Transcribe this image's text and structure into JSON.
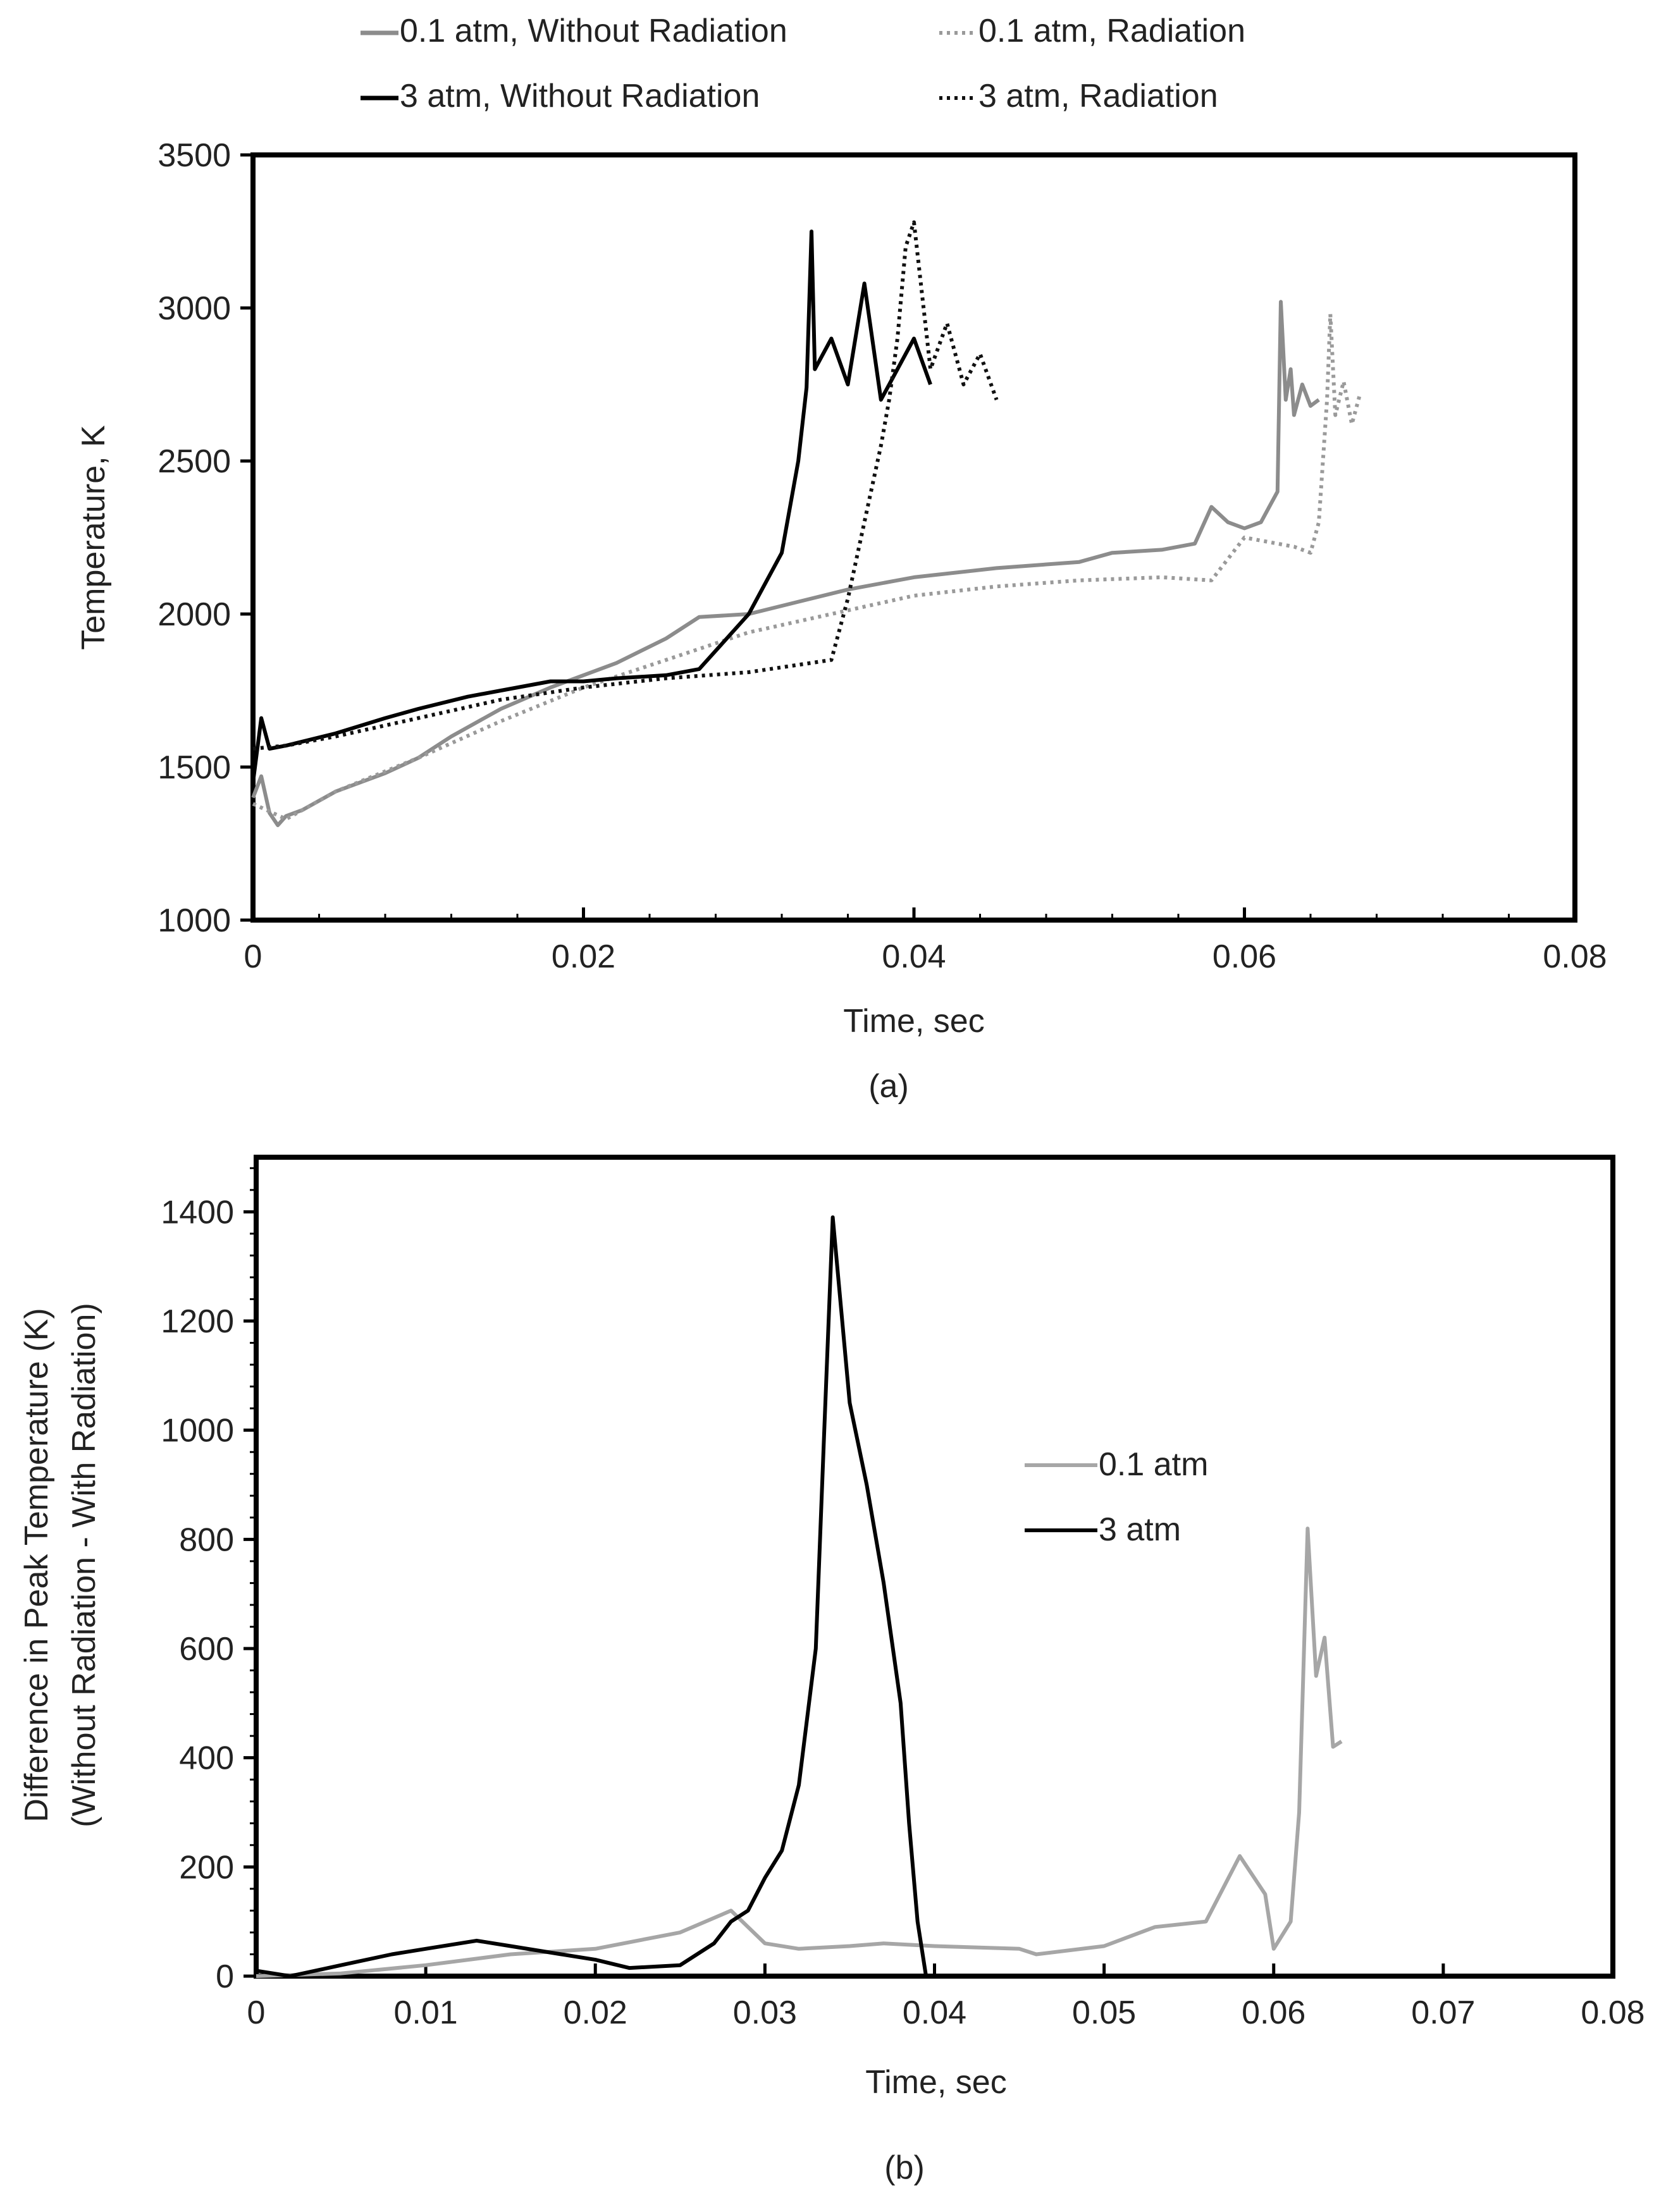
{
  "chart_data": [
    {
      "id": "a",
      "type": "line",
      "caption": "(a)",
      "xlabel": "Time, sec",
      "ylabel": "Temperature, K",
      "xlim": [
        0,
        0.08
      ],
      "ylim": [
        1000,
        3500
      ],
      "xticks": [
        "0",
        "0.02",
        "0.04",
        "0.06",
        "0.08"
      ],
      "yticks": [
        "1000",
        "1500",
        "2000",
        "2500",
        "3000",
        "3500"
      ],
      "legend_position": "top",
      "series": [
        {
          "name": "0.1 atm, Without Radiation",
          "color": "#8c8c8c",
          "dash": "solid",
          "x": [
            0,
            0.0005,
            0.001,
            0.0015,
            0.002,
            0.003,
            0.005,
            0.008,
            0.01,
            0.012,
            0.015,
            0.018,
            0.02,
            0.022,
            0.025,
            0.027,
            0.03,
            0.033,
            0.036,
            0.04,
            0.045,
            0.05,
            0.052,
            0.055,
            0.057,
            0.058,
            0.059,
            0.06,
            0.061,
            0.0615,
            0.062,
            0.0622,
            0.0625,
            0.0628,
            0.063,
            0.0635,
            0.064,
            0.0645
          ],
          "y": [
            1400,
            1470,
            1350,
            1310,
            1340,
            1360,
            1420,
            1480,
            1530,
            1600,
            1690,
            1760,
            1800,
            1840,
            1920,
            1990,
            2000,
            2040,
            2080,
            2120,
            2150,
            2170,
            2200,
            2210,
            2230,
            2350,
            2300,
            2280,
            2300,
            2350,
            2400,
            3020,
            2700,
            2800,
            2650,
            2750,
            2680,
            2700
          ]
        },
        {
          "name": "0.1 atm, Radiation",
          "color": "#9a9a9a",
          "dash": "dotted",
          "x": [
            0,
            0.002,
            0.005,
            0.01,
            0.015,
            0.02,
            0.025,
            0.03,
            0.035,
            0.04,
            0.045,
            0.05,
            0.055,
            0.058,
            0.06,
            0.062,
            0.063,
            0.064,
            0.0645,
            0.065,
            0.0652,
            0.0655,
            0.066,
            0.0665,
            0.067
          ],
          "y": [
            1380,
            1330,
            1420,
            1530,
            1650,
            1760,
            1850,
            1940,
            2000,
            2060,
            2090,
            2110,
            2120,
            2110,
            2250,
            2230,
            2220,
            2200,
            2300,
            2700,
            2980,
            2650,
            2760,
            2620,
            2720
          ]
        },
        {
          "name": "3 atm, Without Radiation",
          "color": "#000000",
          "dash": "solid",
          "x": [
            0,
            0.0005,
            0.001,
            0.002,
            0.005,
            0.008,
            0.01,
            0.013,
            0.015,
            0.018,
            0.02,
            0.022,
            0.025,
            0.027,
            0.028,
            0.03,
            0.031,
            0.032,
            0.033,
            0.0335,
            0.0338,
            0.034,
            0.035,
            0.036,
            0.037,
            0.038,
            0.039,
            0.04,
            0.041
          ],
          "y": [
            1450,
            1660,
            1560,
            1570,
            1610,
            1660,
            1690,
            1730,
            1750,
            1780,
            1780,
            1790,
            1800,
            1820,
            1880,
            2000,
            2100,
            2200,
            2500,
            2740,
            3250,
            2800,
            2900,
            2750,
            3080,
            2700,
            2800,
            2900,
            2750
          ]
        },
        {
          "name": "3 atm, Radiation",
          "color": "#111111",
          "dash": "dotted",
          "x": [
            0,
            0.002,
            0.005,
            0.01,
            0.015,
            0.02,
            0.025,
            0.03,
            0.035,
            0.036,
            0.037,
            0.038,
            0.0385,
            0.039,
            0.0395,
            0.04,
            0.041,
            0.042,
            0.043,
            0.044,
            0.045
          ],
          "y": [
            1560,
            1570,
            1600,
            1660,
            1720,
            1760,
            1790,
            1810,
            1850,
            2050,
            2300,
            2550,
            2700,
            2900,
            3200,
            3280,
            2800,
            2950,
            2750,
            2850,
            2700
          ]
        }
      ]
    },
    {
      "id": "b",
      "type": "line",
      "caption": "(b)",
      "xlabel": "Time, sec",
      "ylabel": "Difference in Peak Temperature (K)",
      "ylabel2": "(Without Radiation - With Radiation)",
      "xlim": [
        0,
        0.08
      ],
      "ylim": [
        0,
        1500
      ],
      "xticks": [
        "0",
        "0.01",
        "0.02",
        "0.03",
        "0.04",
        "0.05",
        "0.06",
        "0.07",
        "0.08"
      ],
      "yticks": [
        "0",
        "200",
        "400",
        "600",
        "800",
        "1000",
        "1200",
        "1400"
      ],
      "legend_position": "right",
      "series": [
        {
          "name": "0.1 atm",
          "color": "#a6a6a6",
          "dash": "solid",
          "x": [
            0,
            0.005,
            0.01,
            0.015,
            0.02,
            0.025,
            0.028,
            0.03,
            0.032,
            0.035,
            0.037,
            0.04,
            0.045,
            0.046,
            0.05,
            0.053,
            0.056,
            0.058,
            0.0595,
            0.06,
            0.061,
            0.0615,
            0.062,
            0.0625,
            0.063,
            0.0635,
            0.064
          ],
          "y": [
            0,
            5,
            20,
            40,
            50,
            80,
            120,
            60,
            50,
            55,
            60,
            55,
            50,
            40,
            55,
            90,
            100,
            220,
            150,
            50,
            100,
            300,
            820,
            550,
            620,
            420,
            430
          ]
        },
        {
          "name": "3 atm",
          "color": "#000000",
          "dash": "solid",
          "x": [
            0,
            0.002,
            0.005,
            0.008,
            0.01,
            0.013,
            0.015,
            0.018,
            0.02,
            0.022,
            0.025,
            0.027,
            0.028,
            0.029,
            0.03,
            0.031,
            0.032,
            0.033,
            0.0335,
            0.034,
            0.035,
            0.036,
            0.037,
            0.038,
            0.0385,
            0.039,
            0.0395
          ],
          "y": [
            10,
            0,
            20,
            40,
            50,
            65,
            55,
            40,
            30,
            15,
            20,
            60,
            100,
            120,
            180,
            230,
            350,
            600,
            1000,
            1390,
            1050,
            900,
            720,
            500,
            280,
            100,
            0
          ]
        }
      ]
    }
  ]
}
